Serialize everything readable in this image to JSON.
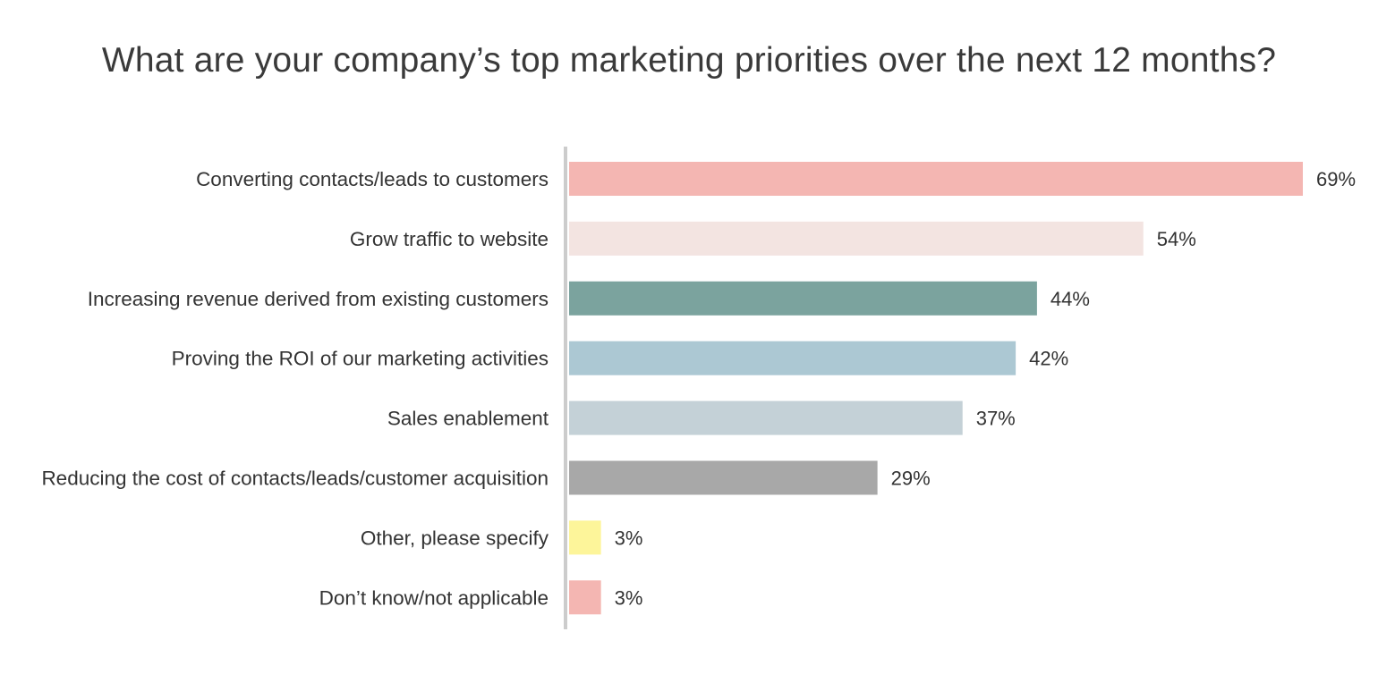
{
  "chart_data": {
    "type": "bar",
    "orientation": "horizontal",
    "title": "What are your company’s top marketing priorities over the next 12 months?",
    "xlabel": "",
    "ylabel": "",
    "xlim": [
      0,
      69
    ],
    "grid": false,
    "legend": "none",
    "categories": [
      "Converting contacts/leads to customers",
      "Grow traffic to website",
      "Increasing revenue derived from existing customers",
      "Proving the ROI of our marketing activities",
      "Sales enablement",
      "Reducing the cost of contacts/leads/customer acquisition",
      "Other, please specify",
      "Don’t know/not applicable"
    ],
    "values": [
      69,
      54,
      44,
      42,
      37,
      29,
      3,
      3
    ],
    "value_labels": [
      "69%",
      "54%",
      "44%",
      "42%",
      "37%",
      "29%",
      "3%",
      "3%"
    ],
    "colors": [
      "#f4b6b2",
      "#f3e4e1",
      "#7ba39e",
      "#acc8d3",
      "#c4d1d7",
      "#a8a8a8",
      "#fdf59a",
      "#f4b6b2"
    ],
    "axis_color": "#cccccc"
  }
}
